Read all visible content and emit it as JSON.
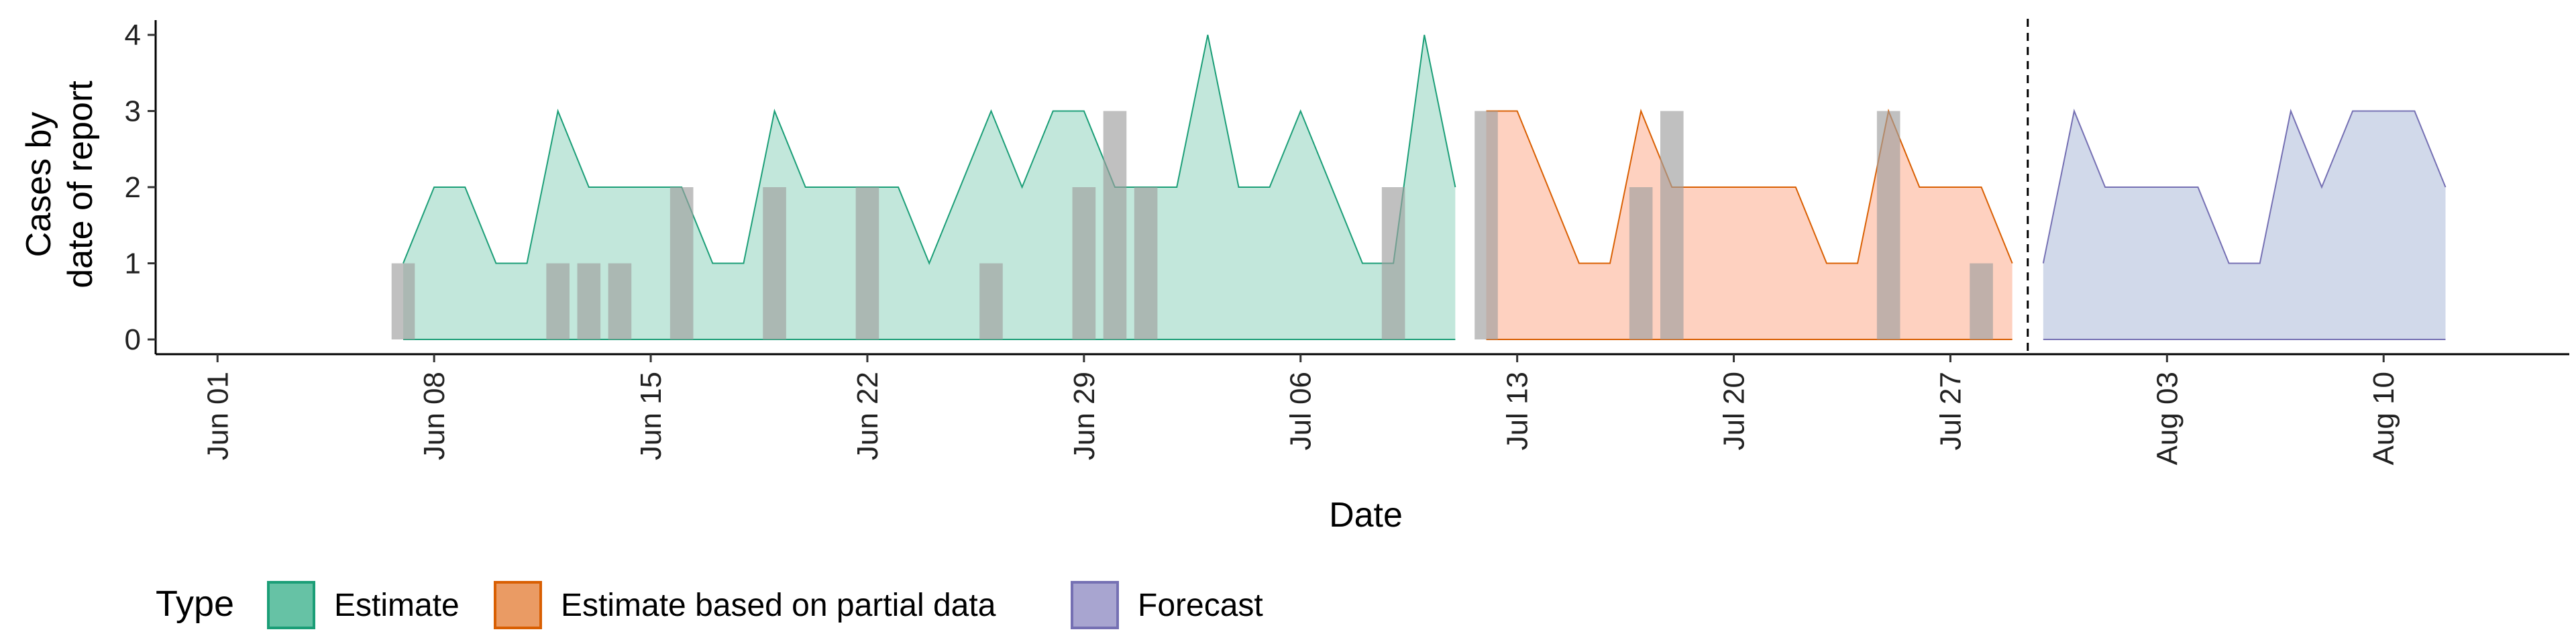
{
  "chart_data": {
    "type": "area",
    "xlabel": "Date",
    "ylabel_line1": "Cases by",
    "ylabel_line2": "date of report",
    "xlim": [
      "2020-05-30",
      "2020-08-16"
    ],
    "ylim": [
      0,
      4.2
    ],
    "y_ticks": [
      0,
      1,
      2,
      3,
      4
    ],
    "x_ticks": [
      {
        "date": "2020-06-01",
        "label": "Jun 01"
      },
      {
        "date": "2020-06-08",
        "label": "Jun 08"
      },
      {
        "date": "2020-06-15",
        "label": "Jun 15"
      },
      {
        "date": "2020-06-22",
        "label": "Jun 22"
      },
      {
        "date": "2020-06-29",
        "label": "Jun 29"
      },
      {
        "date": "2020-07-06",
        "label": "Jul 06"
      },
      {
        "date": "2020-07-13",
        "label": "Jul 13"
      },
      {
        "date": "2020-07-20",
        "label": "Jul 20"
      },
      {
        "date": "2020-07-27",
        "label": "Jul 27"
      },
      {
        "date": "2020-08-03",
        "label": "Aug 03"
      },
      {
        "date": "2020-08-10",
        "label": "Aug 10"
      }
    ],
    "forecast_date": "2020-07-29",
    "legend": {
      "title": "Type",
      "position": "bottom"
    },
    "series": [
      {
        "name": "Estimate",
        "color": "#66c2a5",
        "line_color": "#1b9e77",
        "points": [
          [
            "2020-06-07",
            1
          ],
          [
            "2020-06-08",
            2
          ],
          [
            "2020-06-09",
            2
          ],
          [
            "2020-06-10",
            1
          ],
          [
            "2020-06-11",
            1
          ],
          [
            "2020-06-12",
            3
          ],
          [
            "2020-06-13",
            2
          ],
          [
            "2020-06-14",
            2
          ],
          [
            "2020-06-15",
            2
          ],
          [
            "2020-06-16",
            2
          ],
          [
            "2020-06-17",
            1
          ],
          [
            "2020-06-18",
            1
          ],
          [
            "2020-06-19",
            3
          ],
          [
            "2020-06-20",
            2
          ],
          [
            "2020-06-21",
            2
          ],
          [
            "2020-06-22",
            2
          ],
          [
            "2020-06-23",
            2
          ],
          [
            "2020-06-24",
            1
          ],
          [
            "2020-06-25",
            2
          ],
          [
            "2020-06-26",
            3
          ],
          [
            "2020-06-27",
            2
          ],
          [
            "2020-06-28",
            3
          ],
          [
            "2020-06-29",
            3
          ],
          [
            "2020-06-30",
            2
          ],
          [
            "2020-07-01",
            2
          ],
          [
            "2020-07-02",
            2
          ],
          [
            "2020-07-03",
            4
          ],
          [
            "2020-07-04",
            2
          ],
          [
            "2020-07-05",
            2
          ],
          [
            "2020-07-06",
            3
          ],
          [
            "2020-07-07",
            2
          ],
          [
            "2020-07-08",
            1
          ],
          [
            "2020-07-09",
            1
          ],
          [
            "2020-07-10",
            4
          ],
          [
            "2020-07-11",
            2
          ]
        ]
      },
      {
        "name": "Estimate based on partial data",
        "color": "#fc8d62",
        "line_color": "#d95f02",
        "points": [
          [
            "2020-07-12",
            3
          ],
          [
            "2020-07-13",
            3
          ],
          [
            "2020-07-14",
            2
          ],
          [
            "2020-07-15",
            1
          ],
          [
            "2020-07-16",
            1
          ],
          [
            "2020-07-17",
            3
          ],
          [
            "2020-07-18",
            2
          ],
          [
            "2020-07-19",
            2
          ],
          [
            "2020-07-20",
            2
          ],
          [
            "2020-07-21",
            2
          ],
          [
            "2020-07-22",
            2
          ],
          [
            "2020-07-23",
            1
          ],
          [
            "2020-07-24",
            1
          ],
          [
            "2020-07-25",
            3
          ],
          [
            "2020-07-26",
            2
          ],
          [
            "2020-07-27",
            2
          ],
          [
            "2020-07-28",
            2
          ],
          [
            "2020-07-29",
            1
          ]
        ]
      },
      {
        "name": "Forecast",
        "color": "#8da0cb",
        "line_color": "#7570b3",
        "points": [
          [
            "2020-07-30",
            1
          ],
          [
            "2020-07-31",
            3
          ],
          [
            "2020-08-01",
            2
          ],
          [
            "2020-08-02",
            2
          ],
          [
            "2020-08-03",
            2
          ],
          [
            "2020-08-04",
            2
          ],
          [
            "2020-08-05",
            1
          ],
          [
            "2020-08-06",
            1
          ],
          [
            "2020-08-07",
            3
          ],
          [
            "2020-08-08",
            2
          ],
          [
            "2020-08-09",
            3
          ],
          [
            "2020-08-10",
            3
          ],
          [
            "2020-08-11",
            3
          ],
          [
            "2020-08-12",
            2
          ]
        ]
      }
    ],
    "reported_cases": {
      "color": "#9e9e9e",
      "points": [
        [
          "2020-06-07",
          1
        ],
        [
          "2020-06-12",
          1
        ],
        [
          "2020-06-13",
          1
        ],
        [
          "2020-06-14",
          1
        ],
        [
          "2020-06-16",
          2
        ],
        [
          "2020-06-19",
          2
        ],
        [
          "2020-06-22",
          2
        ],
        [
          "2020-06-26",
          1
        ],
        [
          "2020-06-29",
          2
        ],
        [
          "2020-06-30",
          3
        ],
        [
          "2020-07-01",
          2
        ],
        [
          "2020-07-09",
          2
        ],
        [
          "2020-07-12",
          3
        ],
        [
          "2020-07-17",
          2
        ],
        [
          "2020-07-18",
          3
        ],
        [
          "2020-07-25",
          3
        ],
        [
          "2020-07-28",
          1
        ]
      ]
    }
  }
}
